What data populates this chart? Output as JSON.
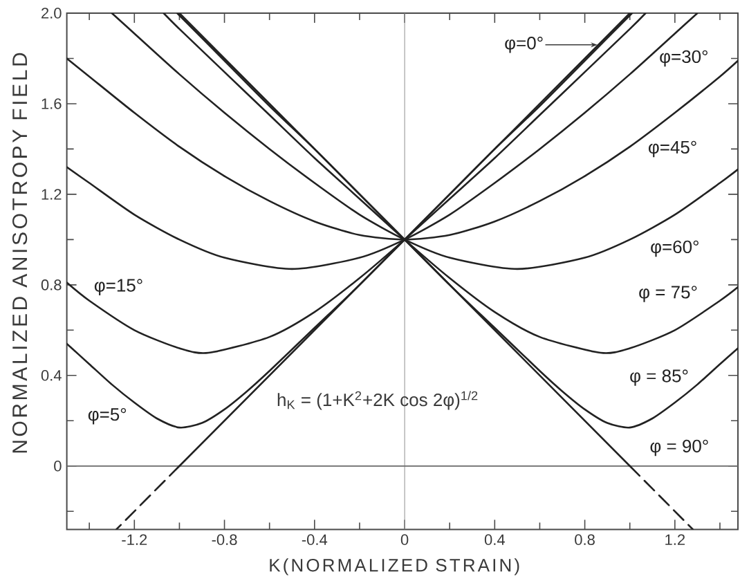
{
  "chart_data": {
    "type": "line",
    "xlabel": "K(NORMALIZED STRAIN)",
    "ylabel": "NORMALIZED ANISOTROPY FIELD",
    "xlim": [
      -1.5,
      1.48
    ],
    "ylim": [
      -0.28,
      2.0
    ],
    "xticks": [
      -1.2,
      -0.8,
      -0.4,
      0,
      0.4,
      0.8,
      1.2
    ],
    "yticks": [
      0,
      0.4,
      0.8,
      1.2,
      1.6,
      {
        "value": 2.0,
        "label": "2.0"
      }
    ],
    "ref_lines": [
      {
        "axis": "x",
        "value": 0,
        "color": "#9a9a9a"
      },
      {
        "axis": "y",
        "value": 0,
        "color": "#6e6e6e"
      }
    ],
    "annotations": [
      "h$_{K}$ = (1+K$^{2}$+2K cos 2φ)$^{1/2}$"
    ],
    "series": [
      {
        "name": "φ=0°",
        "color": "#222222",
        "x": [
          -1.0,
          1.0
        ],
        "values": [
          0,
          2.0
        ]
      },
      {
        "color": "#222222",
        "line_style": "dashed",
        "x": [
          -1.0,
          -1.28
        ],
        "values": [
          0,
          -0.28
        ]
      },
      {
        "name": "φ=5°",
        "color": "#222222",
        "x": [
          -1.5,
          -1.4,
          -1.3,
          -1.2,
          -1.1,
          -1.0,
          -0.9,
          -0.8,
          -0.7,
          -0.6,
          -0.4,
          -0.2,
          0,
          0.2,
          0.4,
          0.6,
          0.8,
          1.0,
          1.01
        ],
        "values": [
          0.54,
          0.45,
          0.36,
          0.28,
          0.21,
          0.17,
          0.19,
          0.25,
          0.33,
          0.42,
          0.61,
          0.8,
          1.0,
          1.2,
          1.4,
          1.59,
          1.79,
          1.99,
          2.0
        ]
      },
      {
        "name": "φ=15°",
        "color": "#222222",
        "x": [
          -1.5,
          -1.4,
          -1.2,
          -1.0,
          -0.87,
          -0.6,
          -0.4,
          -0.2,
          0,
          0.2,
          0.4,
          0.6,
          0.8,
          1.0,
          1.07
        ],
        "values": [
          0.81,
          0.73,
          0.6,
          0.52,
          0.5,
          0.57,
          0.68,
          0.83,
          1.0,
          1.18,
          1.36,
          1.55,
          1.74,
          1.93,
          2.0
        ]
      },
      {
        "name": "φ=30°",
        "color": "#222222",
        "x": [
          -1.5,
          -1.4,
          -1.2,
          -1.0,
          -0.8,
          -0.5,
          -0.2,
          0,
          0.2,
          0.4,
          0.6,
          0.8,
          1.0,
          1.2,
          1.3
        ],
        "values": [
          1.32,
          1.25,
          1.11,
          1.0,
          0.92,
          0.87,
          0.92,
          1.0,
          1.11,
          1.25,
          1.4,
          1.56,
          1.73,
          1.91,
          2.0
        ]
      },
      {
        "name": "φ=45°",
        "color": "#222222",
        "x": [
          -1.5,
          -1.4,
          -1.2,
          -1.0,
          -0.8,
          -0.6,
          -0.4,
          -0.2,
          0,
          0.2,
          0.4,
          0.6,
          0.8,
          1.0,
          1.2,
          1.4,
          1.48
        ],
        "values": [
          1.8,
          1.72,
          1.56,
          1.41,
          1.28,
          1.17,
          1.08,
          1.02,
          1.0,
          1.02,
          1.08,
          1.17,
          1.28,
          1.41,
          1.56,
          1.72,
          1.79
        ]
      },
      {
        "name": "φ=60°",
        "color": "#222222",
        "x": [
          -1.3,
          -1.2,
          -1.0,
          -0.8,
          -0.6,
          -0.4,
          -0.2,
          0,
          0.2,
          0.5,
          0.8,
          1.0,
          1.2,
          1.4,
          1.48
        ],
        "values": [
          2.0,
          1.91,
          1.73,
          1.56,
          1.4,
          1.25,
          1.11,
          1.0,
          0.92,
          0.87,
          0.92,
          1.0,
          1.11,
          1.25,
          1.31
        ]
      },
      {
        "name": "φ = 75°",
        "color": "#222222",
        "x": [
          -1.07,
          -1.0,
          -0.8,
          -0.6,
          -0.4,
          -0.2,
          0,
          0.2,
          0.4,
          0.6,
          0.87,
          1.0,
          1.2,
          1.4,
          1.48
        ],
        "values": [
          2.0,
          1.93,
          1.74,
          1.55,
          1.36,
          1.18,
          1.0,
          0.83,
          0.68,
          0.57,
          0.5,
          0.52,
          0.6,
          0.73,
          0.79
        ]
      },
      {
        "name": "φ = 85°",
        "color": "#222222",
        "x": [
          -1.01,
          -1.0,
          -0.8,
          -0.6,
          -0.4,
          -0.2,
          0,
          0.2,
          0.4,
          0.6,
          0.7,
          0.8,
          0.9,
          1.0,
          1.1,
          1.2,
          1.3,
          1.4,
          1.48
        ],
        "values": [
          2.0,
          1.99,
          1.79,
          1.59,
          1.4,
          1.2,
          1.0,
          0.8,
          0.61,
          0.42,
          0.33,
          0.25,
          0.19,
          0.17,
          0.21,
          0.28,
          0.36,
          0.45,
          0.52
        ]
      },
      {
        "name": "φ = 90°",
        "color": "#222222",
        "x": [
          -1.0,
          1.0
        ],
        "values": [
          2.0,
          0
        ]
      },
      {
        "color": "#222222",
        "line_style": "dashed",
        "x": [
          1.0,
          1.28
        ],
        "values": [
          0,
          -0.28
        ]
      }
    ]
  }
}
